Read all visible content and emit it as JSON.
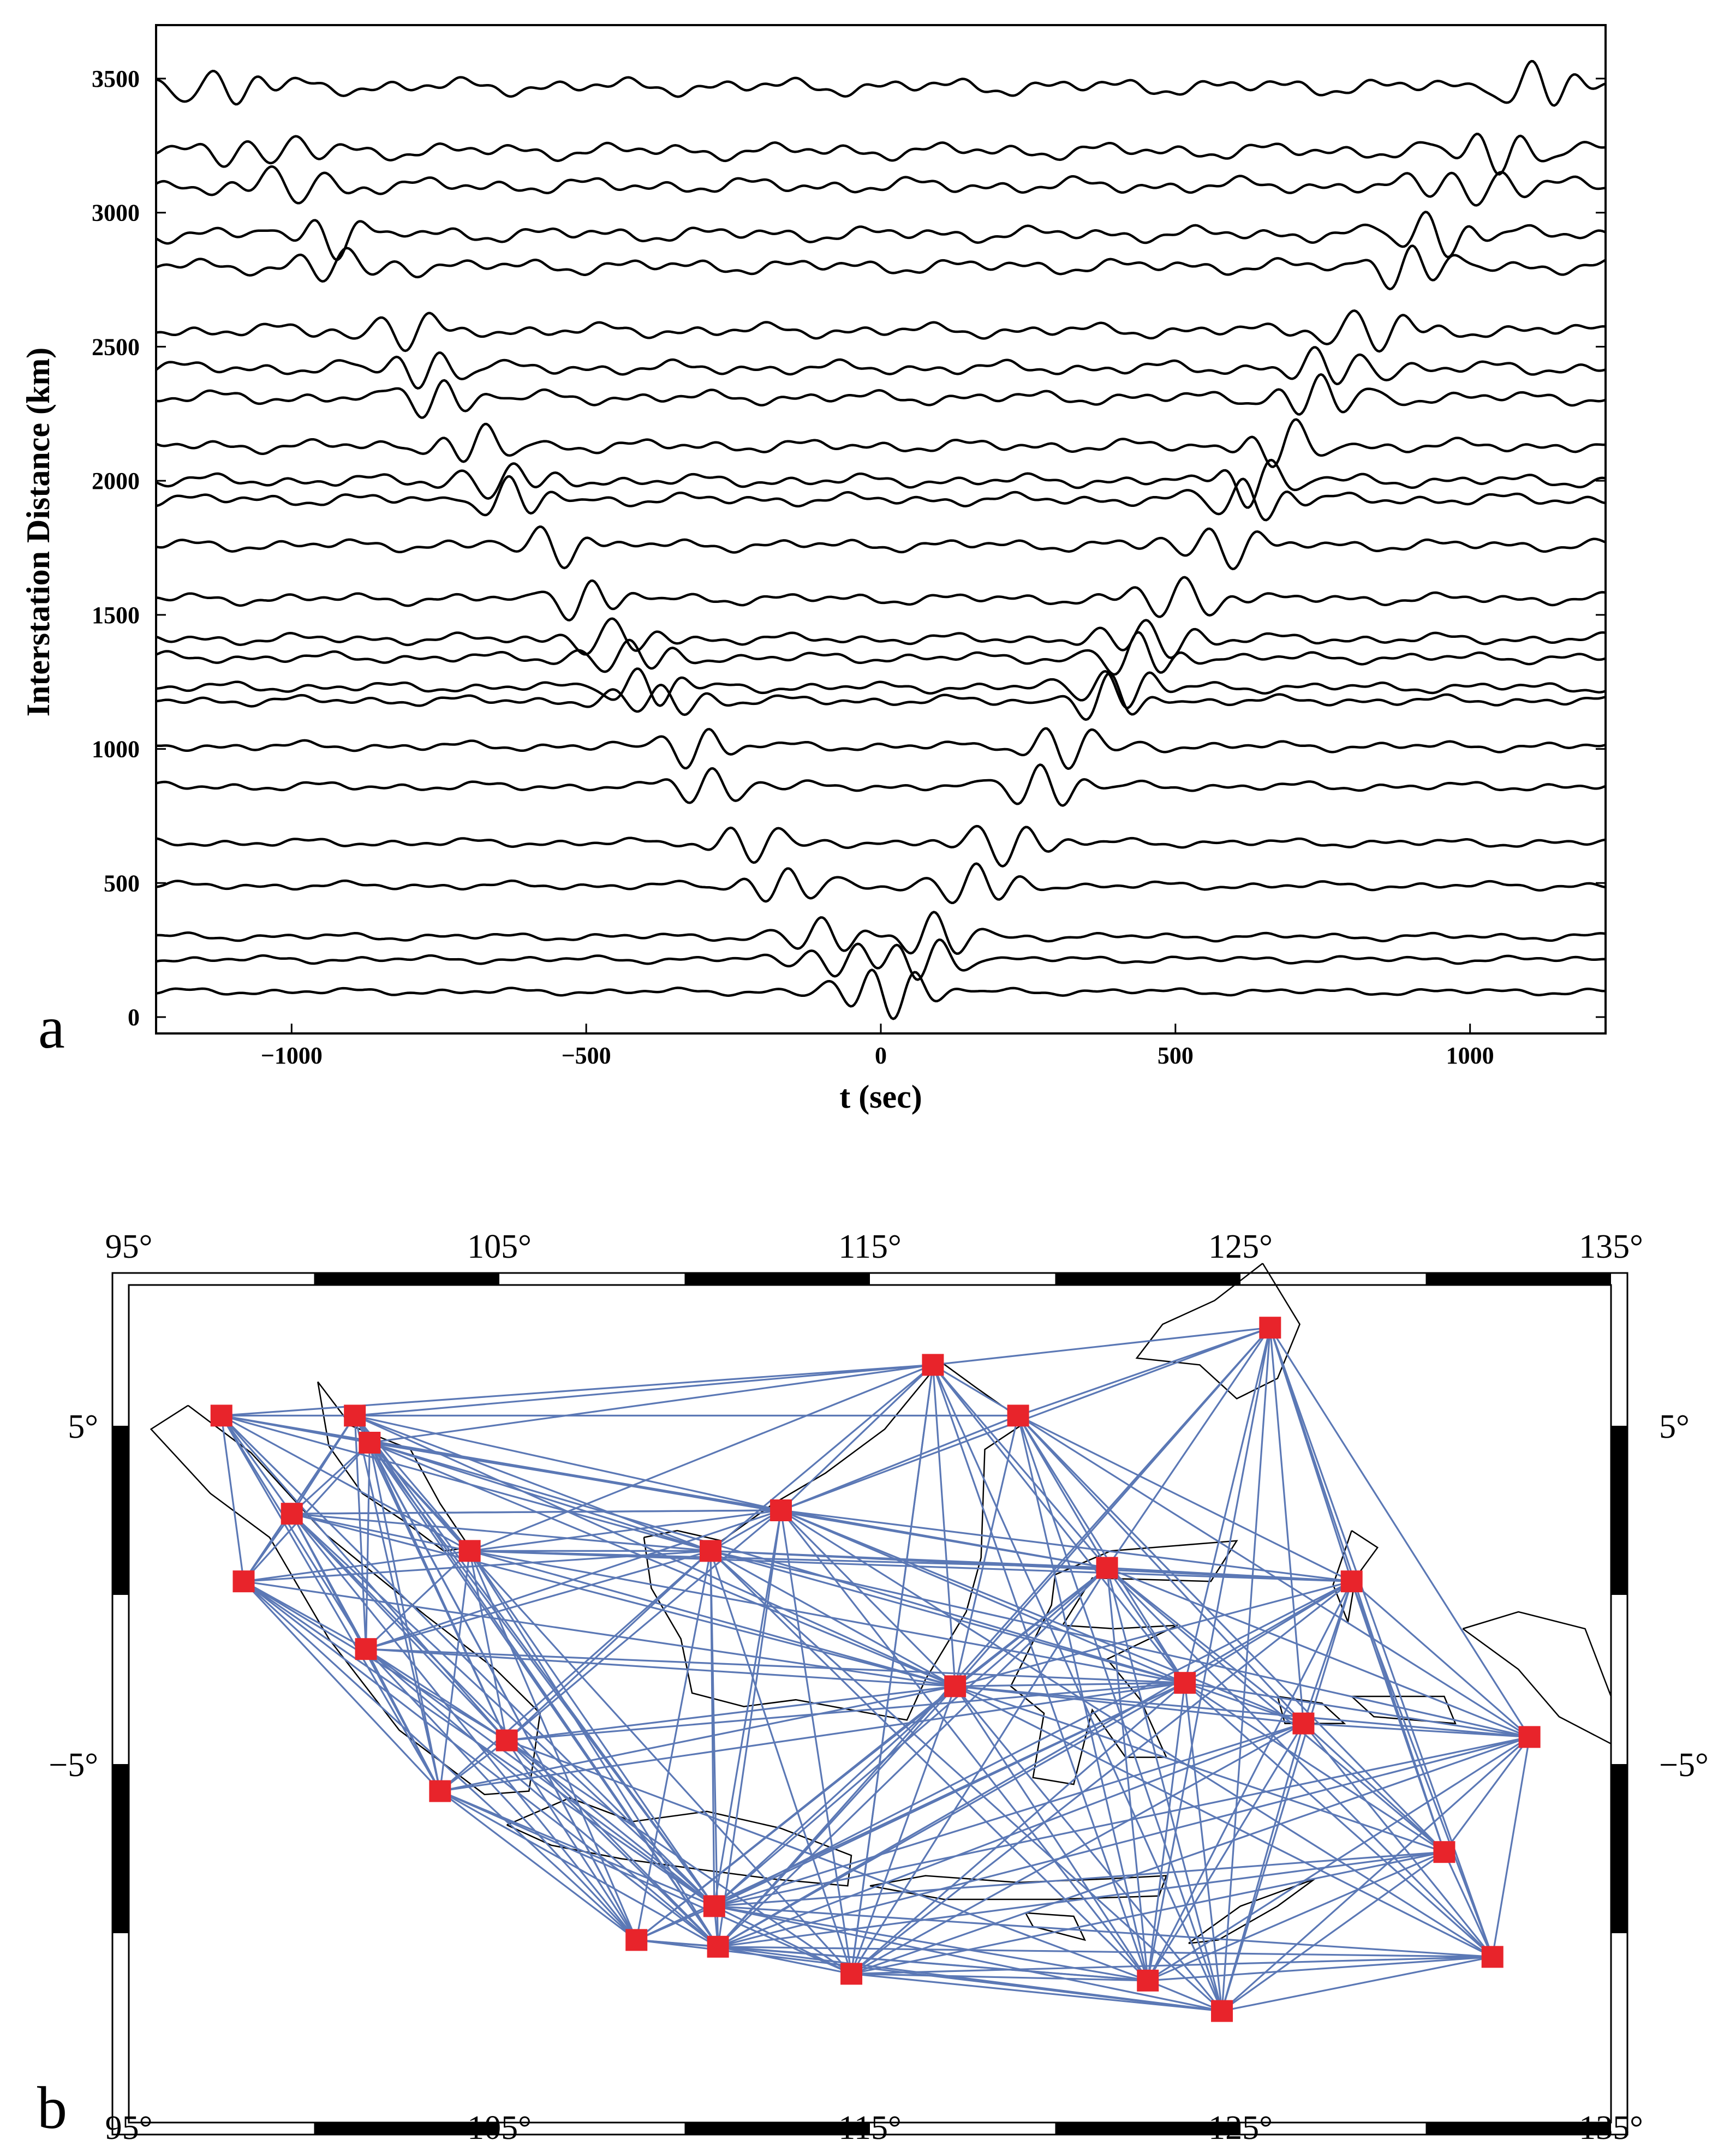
{
  "figure": {
    "panel_a_label": "a",
    "panel_b_label": "b"
  },
  "chart_data": [
    {
      "type": "line",
      "panel": "a",
      "xlabel": "t (sec)",
      "ylabel": "Interstation Distance (km)",
      "xlim": [
        -1230,
        1230
      ],
      "ylim": [
        -20,
        3700
      ],
      "xticks": [
        -1000,
        -500,
        0,
        500,
        1000
      ],
      "xtick_labels": [
        "−1000",
        "−500",
        "0",
        "500",
        "1000"
      ],
      "yticks": [
        0,
        500,
        1000,
        1500,
        2000,
        2500,
        3000,
        3500
      ],
      "ytick_labels": [
        "0",
        "500",
        "1000",
        "1500",
        "2000",
        "2500",
        "3000",
        "3500"
      ],
      "trace_distances_km": [
        95,
        215,
        300,
        490,
        650,
        860,
        1010,
        1180,
        1230,
        1340,
        1410,
        1560,
        1760,
        1930,
        2000,
        2130,
        2310,
        2420,
        2560,
        2800,
        2920,
        3100,
        3230,
        3470
      ],
      "wave_speed_km_per_s": 3.1,
      "grid": false,
      "line_color": "#000000"
    },
    {
      "type": "scatter",
      "panel": "b",
      "xlim": [
        95,
        135
      ],
      "ylim": [
        -11,
        8.5
      ],
      "xticks": [
        95,
        105,
        115,
        125,
        135
      ],
      "xtick_labels": [
        "95°",
        "105°",
        "115°",
        "125°",
        "135°"
      ],
      "yticks": [
        5,
        -5
      ],
      "ytick_labels": [
        "5°",
        "−5°"
      ],
      "station_color": "#e8242b",
      "path_color": "#5b78b5",
      "stations": [
        {
          "lon": 97.5,
          "lat": 5.3
        },
        {
          "lon": 101.1,
          "lat": 5.3
        },
        {
          "lon": 101.5,
          "lat": 4.5
        },
        {
          "lon": 99.4,
          "lat": 2.4
        },
        {
          "lon": 98.1,
          "lat": 0.4
        },
        {
          "lon": 101.4,
          "lat": -1.6
        },
        {
          "lon": 104.2,
          "lat": 1.3
        },
        {
          "lon": 105.2,
          "lat": -4.3
        },
        {
          "lon": 103.4,
          "lat": -5.8
        },
        {
          "lon": 108.7,
          "lat": -10.2
        },
        {
          "lon": 110.7,
          "lat": 1.3
        },
        {
          "lon": 112.6,
          "lat": 2.5
        },
        {
          "lon": 110.8,
          "lat": -9.2
        },
        {
          "lon": 110.9,
          "lat": -10.4
        },
        {
          "lon": 114.5,
          "lat": -11.2
        },
        {
          "lon": 116.7,
          "lat": 6.8
        },
        {
          "lon": 117.3,
          "lat": -2.7
        },
        {
          "lon": 119.0,
          "lat": 5.3
        },
        {
          "lon": 121.4,
          "lat": 0.8
        },
        {
          "lon": 122.5,
          "lat": -11.4
        },
        {
          "lon": 123.5,
          "lat": -2.6
        },
        {
          "lon": 124.5,
          "lat": -12.3
        },
        {
          "lon": 125.8,
          "lat": 7.9
        },
        {
          "lon": 126.7,
          "lat": -3.8
        },
        {
          "lon": 128.0,
          "lat": 0.4
        },
        {
          "lon": 130.5,
          "lat": -7.6
        },
        {
          "lon": 131.8,
          "lat": -10.7
        },
        {
          "lon": 132.8,
          "lat": -4.2
        }
      ],
      "paths": [
        [
          0,
          1
        ],
        [
          0,
          2
        ],
        [
          0,
          3
        ],
        [
          0,
          4
        ],
        [
          0,
          5
        ],
        [
          0,
          6
        ],
        [
          0,
          7
        ],
        [
          0,
          8
        ],
        [
          0,
          10
        ],
        [
          0,
          11
        ],
        [
          0,
          15
        ],
        [
          0,
          12
        ],
        [
          0,
          18
        ],
        [
          1,
          2
        ],
        [
          1,
          3
        ],
        [
          1,
          4
        ],
        [
          1,
          5
        ],
        [
          1,
          6
        ],
        [
          1,
          7
        ],
        [
          1,
          8
        ],
        [
          1,
          10
        ],
        [
          1,
          11
        ],
        [
          1,
          12
        ],
        [
          1,
          13
        ],
        [
          1,
          16
        ],
        [
          1,
          9
        ],
        [
          1,
          17
        ],
        [
          2,
          3
        ],
        [
          2,
          4
        ],
        [
          2,
          5
        ],
        [
          2,
          6
        ],
        [
          2,
          7
        ],
        [
          2,
          8
        ],
        [
          2,
          10
        ],
        [
          2,
          11
        ],
        [
          2,
          12
        ],
        [
          2,
          13
        ],
        [
          2,
          16
        ],
        [
          2,
          20
        ],
        [
          2,
          9
        ],
        [
          2,
          14
        ],
        [
          3,
          4
        ],
        [
          3,
          5
        ],
        [
          3,
          6
        ],
        [
          3,
          7
        ],
        [
          3,
          8
        ],
        [
          3,
          10
        ],
        [
          3,
          11
        ],
        [
          3,
          12
        ],
        [
          3,
          13
        ],
        [
          3,
          9
        ],
        [
          3,
          16
        ],
        [
          4,
          5
        ],
        [
          4,
          6
        ],
        [
          4,
          7
        ],
        [
          4,
          8
        ],
        [
          4,
          10
        ],
        [
          4,
          12
        ],
        [
          4,
          13
        ],
        [
          4,
          9
        ],
        [
          5,
          6
        ],
        [
          5,
          7
        ],
        [
          5,
          8
        ],
        [
          5,
          10
        ],
        [
          5,
          11
        ],
        [
          5,
          12
        ],
        [
          5,
          13
        ],
        [
          5,
          9
        ],
        [
          5,
          16
        ],
        [
          6,
          7
        ],
        [
          6,
          8
        ],
        [
          6,
          10
        ],
        [
          6,
          11
        ],
        [
          6,
          12
        ],
        [
          6,
          13
        ],
        [
          6,
          9
        ],
        [
          6,
          16
        ],
        [
          6,
          18
        ],
        [
          6,
          24
        ],
        [
          6,
          20
        ],
        [
          7,
          8
        ],
        [
          7,
          10
        ],
        [
          7,
          11
        ],
        [
          7,
          12
        ],
        [
          7,
          13
        ],
        [
          7,
          9
        ],
        [
          7,
          14
        ],
        [
          7,
          16
        ],
        [
          7,
          19
        ],
        [
          8,
          9
        ],
        [
          8,
          12
        ],
        [
          8,
          13
        ],
        [
          8,
          14
        ],
        [
          8,
          10
        ],
        [
          9,
          12
        ],
        [
          9,
          13
        ],
        [
          9,
          16
        ],
        [
          9,
          18
        ],
        [
          9,
          20
        ],
        [
          9,
          10
        ],
        [
          10,
          11
        ],
        [
          10,
          12
        ],
        [
          10,
          13
        ],
        [
          10,
          14
        ],
        [
          10,
          16
        ],
        [
          10,
          18
        ],
        [
          10,
          20
        ],
        [
          10,
          24
        ],
        [
          10,
          19
        ],
        [
          10,
          21
        ],
        [
          10,
          15
        ],
        [
          10,
          27
        ],
        [
          11,
          15
        ],
        [
          11,
          16
        ],
        [
          11,
          17
        ],
        [
          11,
          18
        ],
        [
          11,
          20
        ],
        [
          11,
          12
        ],
        [
          11,
          13
        ],
        [
          11,
          14
        ],
        [
          11,
          19
        ],
        [
          11,
          24
        ],
        [
          11,
          22
        ],
        [
          11,
          23
        ],
        [
          11,
          26
        ],
        [
          12,
          13
        ],
        [
          12,
          14
        ],
        [
          12,
          16
        ],
        [
          12,
          18
        ],
        [
          12,
          19
        ],
        [
          12,
          20
        ],
        [
          12,
          21
        ],
        [
          12,
          23
        ],
        [
          12,
          25
        ],
        [
          12,
          26
        ],
        [
          12,
          27
        ],
        [
          12,
          24
        ],
        [
          13,
          14
        ],
        [
          13,
          16
        ],
        [
          13,
          18
        ],
        [
          13,
          19
        ],
        [
          13,
          20
        ],
        [
          13,
          21
        ],
        [
          13,
          23
        ],
        [
          13,
          25
        ],
        [
          13,
          26
        ],
        [
          13,
          27
        ],
        [
          13,
          24
        ],
        [
          13,
          22
        ],
        [
          14,
          16
        ],
        [
          14,
          18
        ],
        [
          14,
          19
        ],
        [
          14,
          20
        ],
        [
          14,
          21
        ],
        [
          14,
          23
        ],
        [
          14,
          25
        ],
        [
          14,
          26
        ],
        [
          14,
          27
        ],
        [
          14,
          24
        ],
        [
          14,
          15
        ],
        [
          15,
          16
        ],
        [
          15,
          17
        ],
        [
          15,
          18
        ],
        [
          15,
          19
        ],
        [
          15,
          21
        ],
        [
          15,
          22
        ],
        [
          15,
          20
        ],
        [
          15,
          14
        ],
        [
          16,
          17
        ],
        [
          16,
          18
        ],
        [
          16,
          19
        ],
        [
          16,
          20
        ],
        [
          16,
          21
        ],
        [
          16,
          22
        ],
        [
          16,
          23
        ],
        [
          16,
          24
        ],
        [
          16,
          25
        ],
        [
          16,
          26
        ],
        [
          16,
          27
        ],
        [
          17,
          18
        ],
        [
          17,
          19
        ],
        [
          17,
          20
        ],
        [
          17,
          21
        ],
        [
          17,
          22
        ],
        [
          17,
          23
        ],
        [
          17,
          24
        ],
        [
          17,
          25
        ],
        [
          17,
          27
        ],
        [
          18,
          19
        ],
        [
          18,
          20
        ],
        [
          18,
          21
        ],
        [
          18,
          22
        ],
        [
          18,
          23
        ],
        [
          18,
          24
        ],
        [
          18,
          25
        ],
        [
          18,
          26
        ],
        [
          18,
          27
        ],
        [
          19,
          20
        ],
        [
          19,
          21
        ],
        [
          19,
          22
        ],
        [
          19,
          23
        ],
        [
          19,
          24
        ],
        [
          19,
          25
        ],
        [
          19,
          26
        ],
        [
          19,
          27
        ],
        [
          20,
          21
        ],
        [
          20,
          22
        ],
        [
          20,
          23
        ],
        [
          20,
          24
        ],
        [
          20,
          25
        ],
        [
          20,
          26
        ],
        [
          20,
          27
        ],
        [
          21,
          22
        ],
        [
          21,
          23
        ],
        [
          21,
          24
        ],
        [
          21,
          25
        ],
        [
          21,
          26
        ],
        [
          21,
          27
        ],
        [
          22,
          23
        ],
        [
          22,
          24
        ],
        [
          22,
          25
        ],
        [
          22,
          26
        ],
        [
          22,
          27
        ],
        [
          23,
          24
        ],
        [
          23,
          25
        ],
        [
          23,
          26
        ],
        [
          23,
          27
        ],
        [
          24,
          25
        ],
        [
          24,
          26
        ],
        [
          24,
          27
        ],
        [
          25,
          26
        ],
        [
          25,
          27
        ],
        [
          26,
          27
        ],
        [
          1,
          15
        ],
        [
          2,
          15
        ],
        [
          3,
          11
        ],
        [
          6,
          15
        ],
        [
          5,
          20
        ],
        [
          8,
          16
        ],
        [
          4,
          16
        ],
        [
          7,
          20
        ],
        [
          8,
          20
        ],
        [
          9,
          21
        ],
        [
          9,
          19
        ]
      ]
    }
  ]
}
